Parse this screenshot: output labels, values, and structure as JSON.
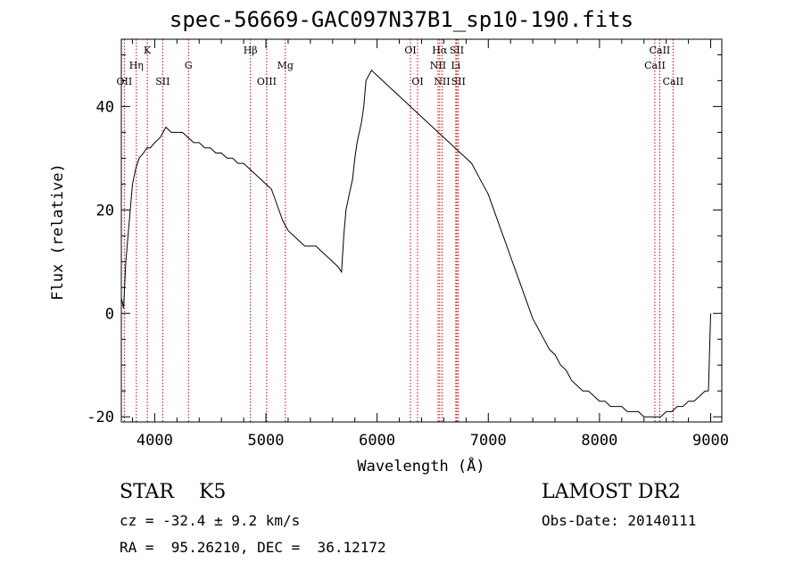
{
  "chart_data": {
    "type": "line",
    "title": "spec-56669-GAC097N37B1_sp10-190.fits",
    "xlabel": "Wavelength (Å)",
    "ylabel": "Flux (relative)",
    "xlim": [
      3700,
      9100
    ],
    "ylim": [
      -21,
      53
    ],
    "xticks": [
      4000,
      5000,
      6000,
      7000,
      8000,
      9000
    ],
    "yticks": [
      -20,
      0,
      20,
      40
    ],
    "grid": false,
    "line_color": "#000000",
    "marker_color": "#cc0000",
    "lines": [
      {
        "label": "OII",
        "wave": 3727,
        "row": 3
      },
      {
        "label": "Hη",
        "wave": 3835,
        "row": 2
      },
      {
        "label": "K",
        "wave": 3934,
        "row": 1
      },
      {
        "label": "SII",
        "wave": 4072,
        "row": 3
      },
      {
        "label": "G",
        "wave": 4304,
        "row": 2
      },
      {
        "label": "Hβ",
        "wave": 4861,
        "row": 1
      },
      {
        "label": "OIII",
        "wave": 5007,
        "row": 3
      },
      {
        "label": "Mg",
        "wave": 5175,
        "row": 2
      },
      {
        "label": "OI",
        "wave": 6300,
        "row": 1
      },
      {
        "label": "OI",
        "wave": 6364,
        "row": 3
      },
      {
        "label": "Hα",
        "wave": 6563,
        "row": 1
      },
      {
        "label": "NII",
        "wave": 6548,
        "row": 2
      },
      {
        "label": "NII",
        "wave": 6584,
        "row": 3
      },
      {
        "label": "SII",
        "wave": 6717,
        "row": 1
      },
      {
        "label": "Li",
        "wave": 6708,
        "row": 2
      },
      {
        "label": "SII",
        "wave": 6731,
        "row": 3
      },
      {
        "label": "CaII",
        "wave": 8542,
        "row": 1
      },
      {
        "label": "CaII",
        "wave": 8498,
        "row": 2
      },
      {
        "label": "CaII",
        "wave": 8662,
        "row": 3
      }
    ],
    "spectrum": {
      "wave": [
        3700,
        3720,
        3740,
        3760,
        3780,
        3800,
        3830,
        3860,
        3900,
        3930,
        3960,
        4000,
        4050,
        4100,
        4150,
        4200,
        4250,
        4300,
        4350,
        4400,
        4450,
        4500,
        4550,
        4600,
        4650,
        4700,
        4750,
        4800,
        4850,
        4900,
        4950,
        5000,
        5050,
        5100,
        5150,
        5200,
        5250,
        5300,
        5350,
        5400,
        5450,
        5500,
        5550,
        5600,
        5650,
        5680,
        5700,
        5720,
        5740,
        5760,
        5780,
        5800,
        5820,
        5840,
        5860,
        5880,
        5900,
        5950,
        6000,
        6050,
        6100,
        6150,
        6200,
        6250,
        6300,
        6350,
        6400,
        6450,
        6500,
        6550,
        6600,
        6650,
        6700,
        6750,
        6800,
        6850,
        6900,
        6950,
        7000,
        7050,
        7100,
        7150,
        7200,
        7250,
        7300,
        7350,
        7400,
        7450,
        7500,
        7550,
        7600,
        7650,
        7700,
        7750,
        7800,
        7850,
        7900,
        7950,
        8000,
        8050,
        8100,
        8150,
        8200,
        8250,
        8300,
        8350,
        8400,
        8450,
        8500,
        8550,
        8600,
        8650,
        8700,
        8750,
        8800,
        8850,
        8900,
        8950,
        8980,
        9000
      ],
      "flux": [
        3,
        1,
        10,
        15,
        20,
        25,
        28,
        30,
        31,
        32,
        32,
        33,
        34,
        36,
        35,
        35,
        35,
        34,
        33,
        33,
        32,
        32,
        31,
        31,
        30,
        30,
        29,
        29,
        28,
        27,
        26,
        25,
        24,
        21,
        18,
        16,
        15,
        14,
        13,
        13,
        13,
        12,
        11,
        10,
        9,
        8,
        15,
        20,
        22,
        24,
        26,
        30,
        33,
        35,
        37,
        40,
        45,
        47,
        46,
        45,
        44,
        43,
        42,
        41,
        40,
        39,
        38,
        37,
        36,
        35,
        34,
        33,
        32,
        31,
        30,
        29,
        27,
        25,
        23,
        20,
        17,
        14,
        11,
        8,
        5,
        2,
        -1,
        -3,
        -5,
        -7,
        -8,
        -10,
        -11,
        -13,
        -14,
        -15,
        -15,
        -16,
        -17,
        -17,
        -18,
        -18,
        -18,
        -19,
        -19,
        -19,
        -20,
        -20,
        -20,
        -20,
        -19,
        -19,
        -18,
        -18,
        -17,
        -17,
        -16,
        -15,
        -15,
        0
      ]
    }
  },
  "info": {
    "object_class": "STAR    K5",
    "survey": "LAMOST DR2",
    "cz": "cz = -32.4 ± 9.2 km/s",
    "obs_date": "Obs-Date: 20140111",
    "radec": "RA =  95.26210, DEC =  36.12172"
  }
}
